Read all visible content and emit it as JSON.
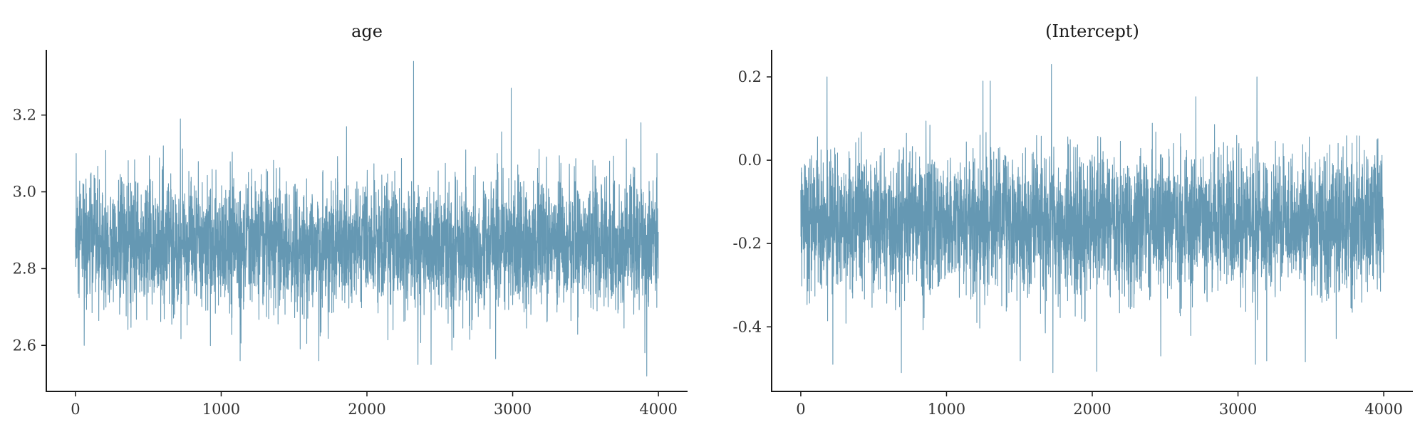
{
  "colors": {
    "trace": "#6598b3",
    "axis": "#1a1a1a"
  },
  "chart_data": [
    {
      "type": "line",
      "title": "age",
      "xlabel": "",
      "ylabel": "",
      "xlim": [
        -200,
        4200
      ],
      "ylim": [
        2.48,
        3.37
      ],
      "xticks": [
        0,
        1000,
        2000,
        3000,
        4000
      ],
      "xtick_labels": [
        "0",
        "1000",
        "2000",
        "3000",
        "4000"
      ],
      "yticks": [
        2.6,
        2.8,
        3.0,
        3.2
      ],
      "ytick_labels": [
        "2.6",
        "2.8",
        "3.0",
        "3.2"
      ],
      "grid": false,
      "series": [
        {
          "n_points": 4000,
          "mean": 2.862,
          "sd": 0.085,
          "min": 2.52,
          "max": 3.34,
          "spikes": [
            {
              "x": 5,
              "y": 3.1
            },
            {
              "x": 60,
              "y": 2.6
            },
            {
              "x": 720,
              "y": 3.19
            },
            {
              "x": 1130,
              "y": 2.56
            },
            {
              "x": 1670,
              "y": 2.56
            },
            {
              "x": 1860,
              "y": 3.17
            },
            {
              "x": 2320,
              "y": 3.34
            },
            {
              "x": 2350,
              "y": 2.55
            },
            {
              "x": 2440,
              "y": 2.55
            },
            {
              "x": 2990,
              "y": 3.27
            },
            {
              "x": 3880,
              "y": 3.18
            },
            {
              "x": 3920,
              "y": 2.52
            },
            {
              "x": 3990,
              "y": 3.1
            }
          ]
        }
      ]
    },
    {
      "type": "line",
      "title": "(Intercept)",
      "xlabel": "",
      "ylabel": "",
      "xlim": [
        -200,
        4200
      ],
      "ylim": [
        -0.555,
        0.265
      ],
      "xticks": [
        0,
        1000,
        2000,
        3000,
        4000
      ],
      "xtick_labels": [
        "0",
        "1000",
        "2000",
        "3000",
        "4000"
      ],
      "yticks": [
        -0.4,
        -0.2,
        0.0,
        0.2
      ],
      "ytick_labels": [
        "-0.4",
        "-0.2",
        "0.0",
        "0.2"
      ],
      "grid": false,
      "series": [
        {
          "n_points": 4000,
          "mean": -0.15,
          "sd": 0.085,
          "min": -0.51,
          "max": 0.23,
          "spikes": [
            {
              "x": 180,
              "y": 0.2
            },
            {
              "x": 220,
              "y": -0.49
            },
            {
              "x": 690,
              "y": -0.51
            },
            {
              "x": 1250,
              "y": 0.19
            },
            {
              "x": 1300,
              "y": 0.19
            },
            {
              "x": 1720,
              "y": 0.23
            },
            {
              "x": 1730,
              "y": -0.51
            },
            {
              "x": 3130,
              "y": 0.2
            },
            {
              "x": 3120,
              "y": -0.49
            },
            {
              "x": 2470,
              "y": -0.47
            }
          ]
        }
      ]
    }
  ]
}
